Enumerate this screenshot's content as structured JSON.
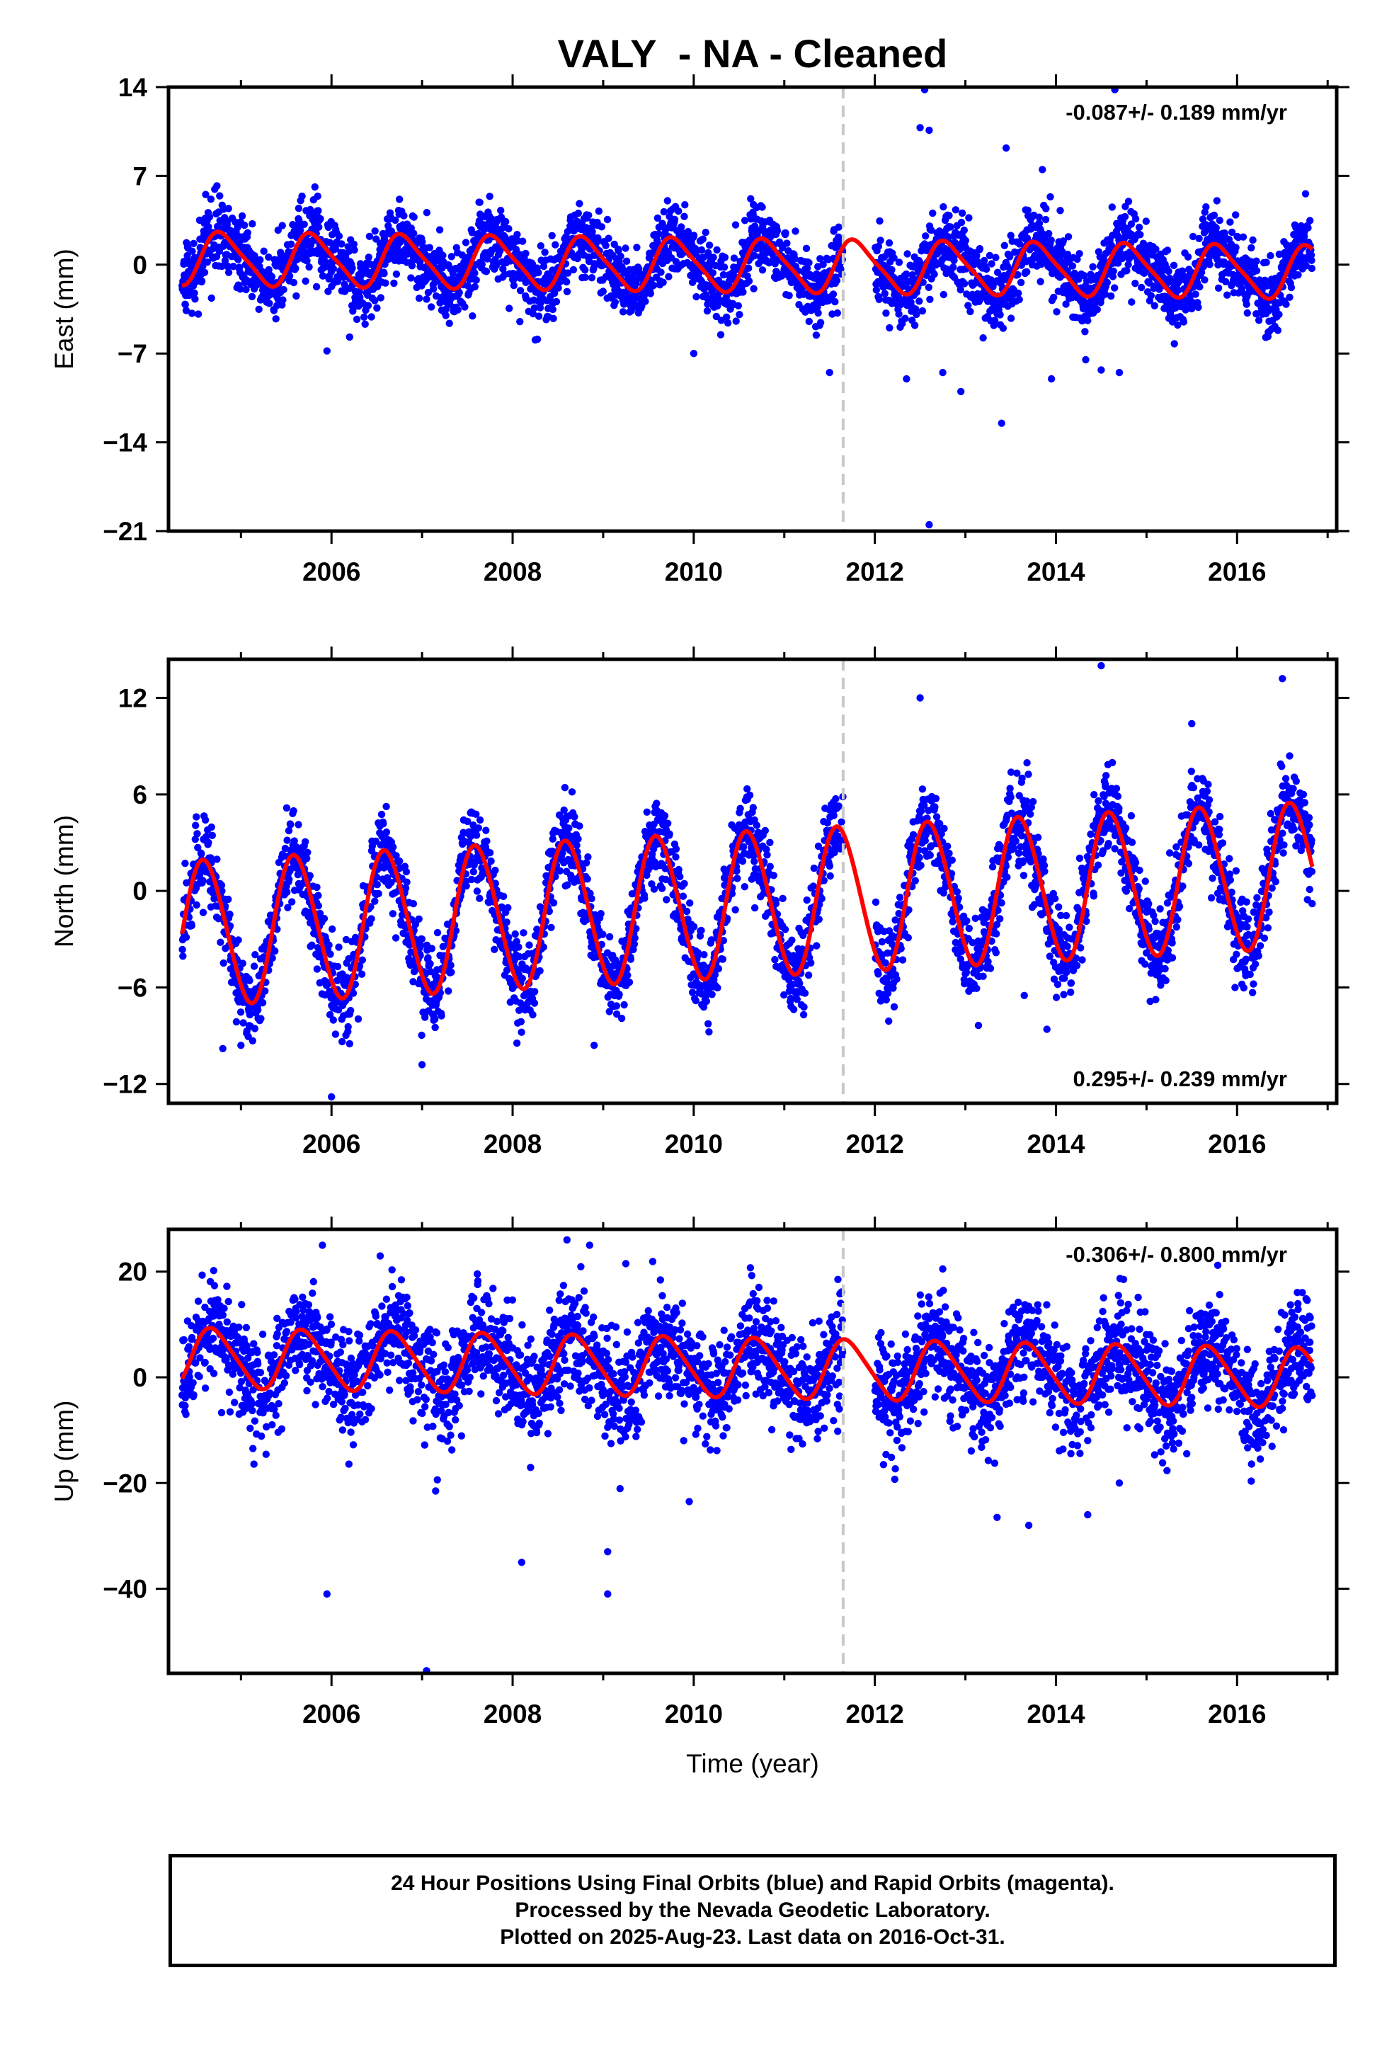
{
  "title": "VALY  - NA - Cleaned",
  "footer": {
    "line1": "24 Hour Positions Using Final Orbits (blue) and Rapid Orbits (magenta).",
    "line2": "Processed by the Nevada Geodetic Laboratory.",
    "line3": "Plotted on 2025-Aug-23. Last data on 2016-Oct-31."
  },
  "colors": {
    "points": "#0000ff",
    "fit": "#ff0000",
    "marker_line": "#c8c8c8",
    "frame": "#000000"
  },
  "chart_data": [
    {
      "type": "scatter",
      "title": "",
      "xlabel": "",
      "ylabel": "East (mm)",
      "xlim": [
        2004.2,
        2017.1
      ],
      "ylim": [
        -21,
        14
      ],
      "xticks": [
        2006,
        2008,
        2010,
        2012,
        2014,
        2016
      ],
      "yticks": [
        14,
        7,
        0,
        -7,
        -14,
        -21
      ],
      "ytick_labels": [
        "14",
        "7",
        "0",
        "−7",
        "−14",
        "−21"
      ],
      "rate_label": "-0.087+/- 0.189 mm/yr",
      "rate_position": "top-right",
      "step_marker_year": 2011.65,
      "data_span": [
        2004.35,
        2016.83
      ],
      "gap": [
        2011.65,
        2012.0
      ],
      "fit": {
        "offset": 0.0,
        "trend_mm_per_yr": -0.087,
        "annual_amp_mm": 2.0,
        "annual_phase_year": 2004.55,
        "semiannual_amp_mm": 0.4
      },
      "scatter_sd_mm": 1.4,
      "outliers": [
        [
          2012.55,
          13.8
        ],
        [
          2012.5,
          10.8
        ],
        [
          2012.6,
          10.6
        ],
        [
          2013.45,
          9.2
        ],
        [
          2013.85,
          7.5
        ],
        [
          2014.65,
          13.8
        ],
        [
          2005.95,
          -6.8
        ],
        [
          2006.2,
          -5.7
        ],
        [
          2010.0,
          -7.0
        ],
        [
          2011.5,
          -8.5
        ],
        [
          2012.35,
          -9.0
        ],
        [
          2012.75,
          -8.5
        ],
        [
          2012.95,
          -10.0
        ],
        [
          2013.4,
          -12.5
        ],
        [
          2013.95,
          -9.0
        ],
        [
          2014.5,
          -8.3
        ],
        [
          2014.7,
          -8.5
        ],
        [
          2012.6,
          -20.5
        ]
      ],
      "series": [
        {
          "name": "",
          "style": "points"
        },
        {
          "name": "",
          "style": "line"
        }
      ]
    },
    {
      "type": "scatter",
      "title": "",
      "xlabel": "",
      "ylabel": "North (mm)",
      "xlim": [
        2004.2,
        2017.1
      ],
      "ylim": [
        -13.2,
        14.4
      ],
      "xticks": [
        2006,
        2008,
        2010,
        2012,
        2014,
        2016
      ],
      "yticks": [
        12,
        6,
        0,
        -6,
        -12
      ],
      "ytick_labels": [
        "12",
        "6",
        "0",
        "−6",
        "−12"
      ],
      "rate_label": "0.295+/- 0.239 mm/yr",
      "rate_position": "bottom-right",
      "step_marker_year": 2011.65,
      "data_span": [
        2004.35,
        2016.83
      ],
      "gap": [
        2011.65,
        2012.0
      ],
      "fit": {
        "offset": -1.0,
        "trend_mm_per_yr": 0.295,
        "annual_amp_mm": 4.5,
        "annual_phase_year": 2004.35,
        "semiannual_amp_mm": 0.3
      },
      "scatter_sd_mm": 1.3,
      "outliers": [
        [
          2004.8,
          -9.8
        ],
        [
          2005.0,
          -9.6
        ],
        [
          2006.0,
          -12.8
        ],
        [
          2006.2,
          -9.5
        ],
        [
          2007.0,
          -10.8
        ],
        [
          2008.9,
          -9.6
        ],
        [
          2013.9,
          -8.6
        ],
        [
          2012.5,
          12.0
        ],
        [
          2014.5,
          14.0
        ],
        [
          2015.5,
          10.4
        ],
        [
          2016.5,
          13.2
        ],
        [
          2013.65,
          -6.5
        ]
      ],
      "series": [
        {
          "name": "",
          "style": "points"
        },
        {
          "name": "",
          "style": "line"
        }
      ]
    },
    {
      "type": "scatter",
      "title": "",
      "xlabel": "Time (year)",
      "ylabel": "Up (mm)",
      "xlim": [
        2004.2,
        2017.1
      ],
      "ylim": [
        -56,
        28
      ],
      "xticks": [
        2006,
        2008,
        2010,
        2012,
        2014,
        2016
      ],
      "yticks": [
        20,
        0,
        -20,
        -40
      ],
      "ytick_labels": [
        "20",
        "0",
        "−20",
        "−40"
      ],
      "rate_label": "-0.306+/- 0.800 mm/yr",
      "rate_position": "top-right",
      "step_marker_year": 2011.65,
      "data_span": [
        2004.35,
        2016.83
      ],
      "gap": [
        2011.65,
        2012.0
      ],
      "fit": {
        "offset": 2.0,
        "trend_mm_per_yr": -0.306,
        "annual_amp_mm": 5.5,
        "annual_phase_year": 2004.45,
        "semiannual_amp_mm": 0.8
      },
      "scatter_sd_mm": 5.0,
      "outliers": [
        [
          2005.9,
          25.0
        ],
        [
          2008.6,
          26.0
        ],
        [
          2008.85,
          25.0
        ],
        [
          2009.25,
          21.5
        ],
        [
          2005.95,
          -41.0
        ],
        [
          2007.05,
          -55.5
        ],
        [
          2007.15,
          -21.5
        ],
        [
          2008.1,
          -35.0
        ],
        [
          2009.05,
          -33.0
        ],
        [
          2009.05,
          -41.0
        ],
        [
          2009.95,
          -23.5
        ],
        [
          2013.35,
          -26.5
        ],
        [
          2013.7,
          -28.0
        ],
        [
          2014.35,
          -26.0
        ],
        [
          2014.7,
          -20.0
        ],
        [
          2012.75,
          20.5
        ]
      ],
      "series": [
        {
          "name": "",
          "style": "points"
        },
        {
          "name": "",
          "style": "line"
        }
      ]
    }
  ]
}
